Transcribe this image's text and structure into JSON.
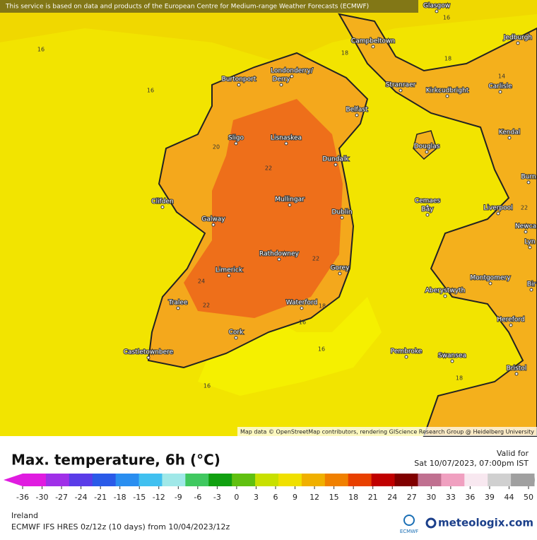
{
  "notice": "This service is based on data and products of the European Centre for Medium-range Weather Forecasts (ECMWF)",
  "places": [
    "Glasgow",
    "Campbeltown",
    "Jedburgh",
    "Burtonport",
    "Londonderry/",
    "Derry",
    "Stranraer",
    "Kirkcudbright",
    "Carlisle",
    "Belfast",
    "Sligo",
    "Lisnaskea",
    "Douglas",
    "Kendal",
    "Dundalk",
    "Burn",
    "Clifden",
    "Galway",
    "Mullingar",
    "Dublin",
    "Cemaes",
    "Bay",
    "Liverpool",
    "Newca",
    "Lyn",
    "Rathdowney",
    "Gorey",
    "Limerick",
    "Aberystwyth",
    "Montgomery",
    "Bir",
    "Tralee",
    "Waterford",
    "Hereford",
    "Cork",
    "Castletownbere",
    "Pembroke",
    "Swansea",
    "Bristol"
  ],
  "contour_labels": [
    16,
    16,
    16,
    16,
    16,
    16,
    18,
    18,
    18,
    20,
    22,
    22,
    22,
    22,
    24,
    14,
    18
  ],
  "attribution": "Map data © OpenStreetMap contributors, rendering GIScience Research Group @ Heidelberg University",
  "legend": {
    "title": "Max. temperature, 6h (°C)",
    "valid_label": "Valid for",
    "valid_time": "Sat 10/07/2023, 07:00pm IST",
    "ticks": [
      -36,
      -30,
      -27,
      -24,
      -21,
      -18,
      -15,
      -12,
      -9,
      -6,
      -3,
      0,
      3,
      6,
      9,
      12,
      15,
      18,
      21,
      24,
      27,
      30,
      33,
      36,
      39,
      44,
      50
    ]
  },
  "footer": {
    "region": "Ireland",
    "model": "ECMWF IFS HRES 0z/12z (10 days) from 10/04/2023/12z",
    "ecmwf": "ECMWF",
    "brand": "meteologix.com"
  }
}
